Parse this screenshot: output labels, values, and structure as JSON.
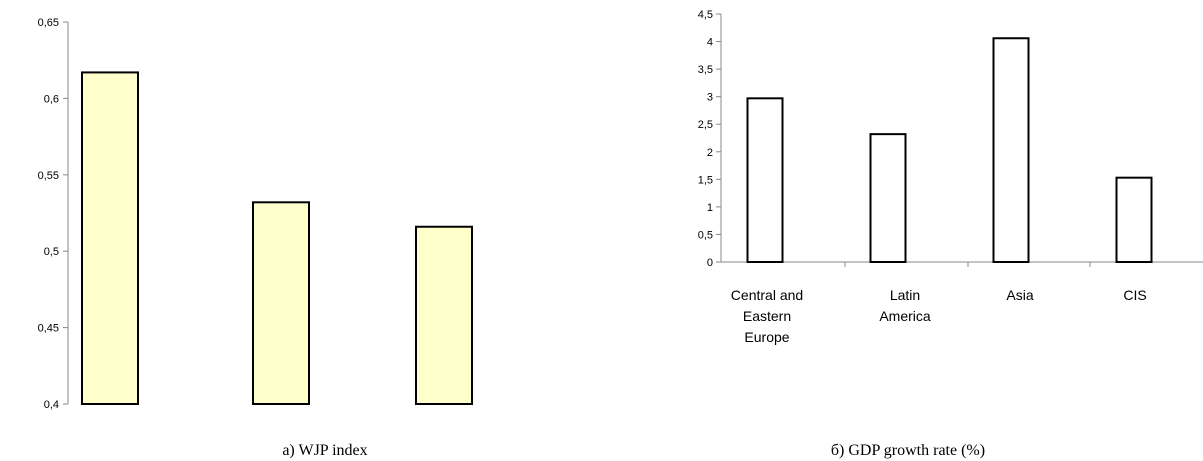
{
  "chart_data": [
    {
      "type": "bar",
      "caption": "a) WJP index",
      "categories": [
        "",
        "",
        ""
      ],
      "values": [
        0.617,
        0.532,
        0.516
      ],
      "ylim": [
        0.4,
        0.65
      ],
      "yticks": [
        "0,4",
        "0,45",
        "0,5",
        "0,55",
        "0,6",
        "0,65"
      ],
      "bar_color": "#ffffcc",
      "grid": false
    },
    {
      "type": "bar",
      "caption": "б) GDP growth rate (%)",
      "categories": [
        [
          "Central and",
          "Eastern",
          "Europe"
        ],
        [
          "Latin",
          "America"
        ],
        [
          "Asia"
        ],
        [
          "CIS"
        ]
      ],
      "values": [
        2.97,
        2.32,
        4.06,
        1.53
      ],
      "ylim": [
        0,
        4.5
      ],
      "yticks": [
        "0",
        "0,5",
        "1",
        "1,5",
        "2",
        "2,5",
        "3",
        "3,5",
        "4",
        "4,5"
      ],
      "bar_color": "#ffffff",
      "grid": false
    }
  ]
}
